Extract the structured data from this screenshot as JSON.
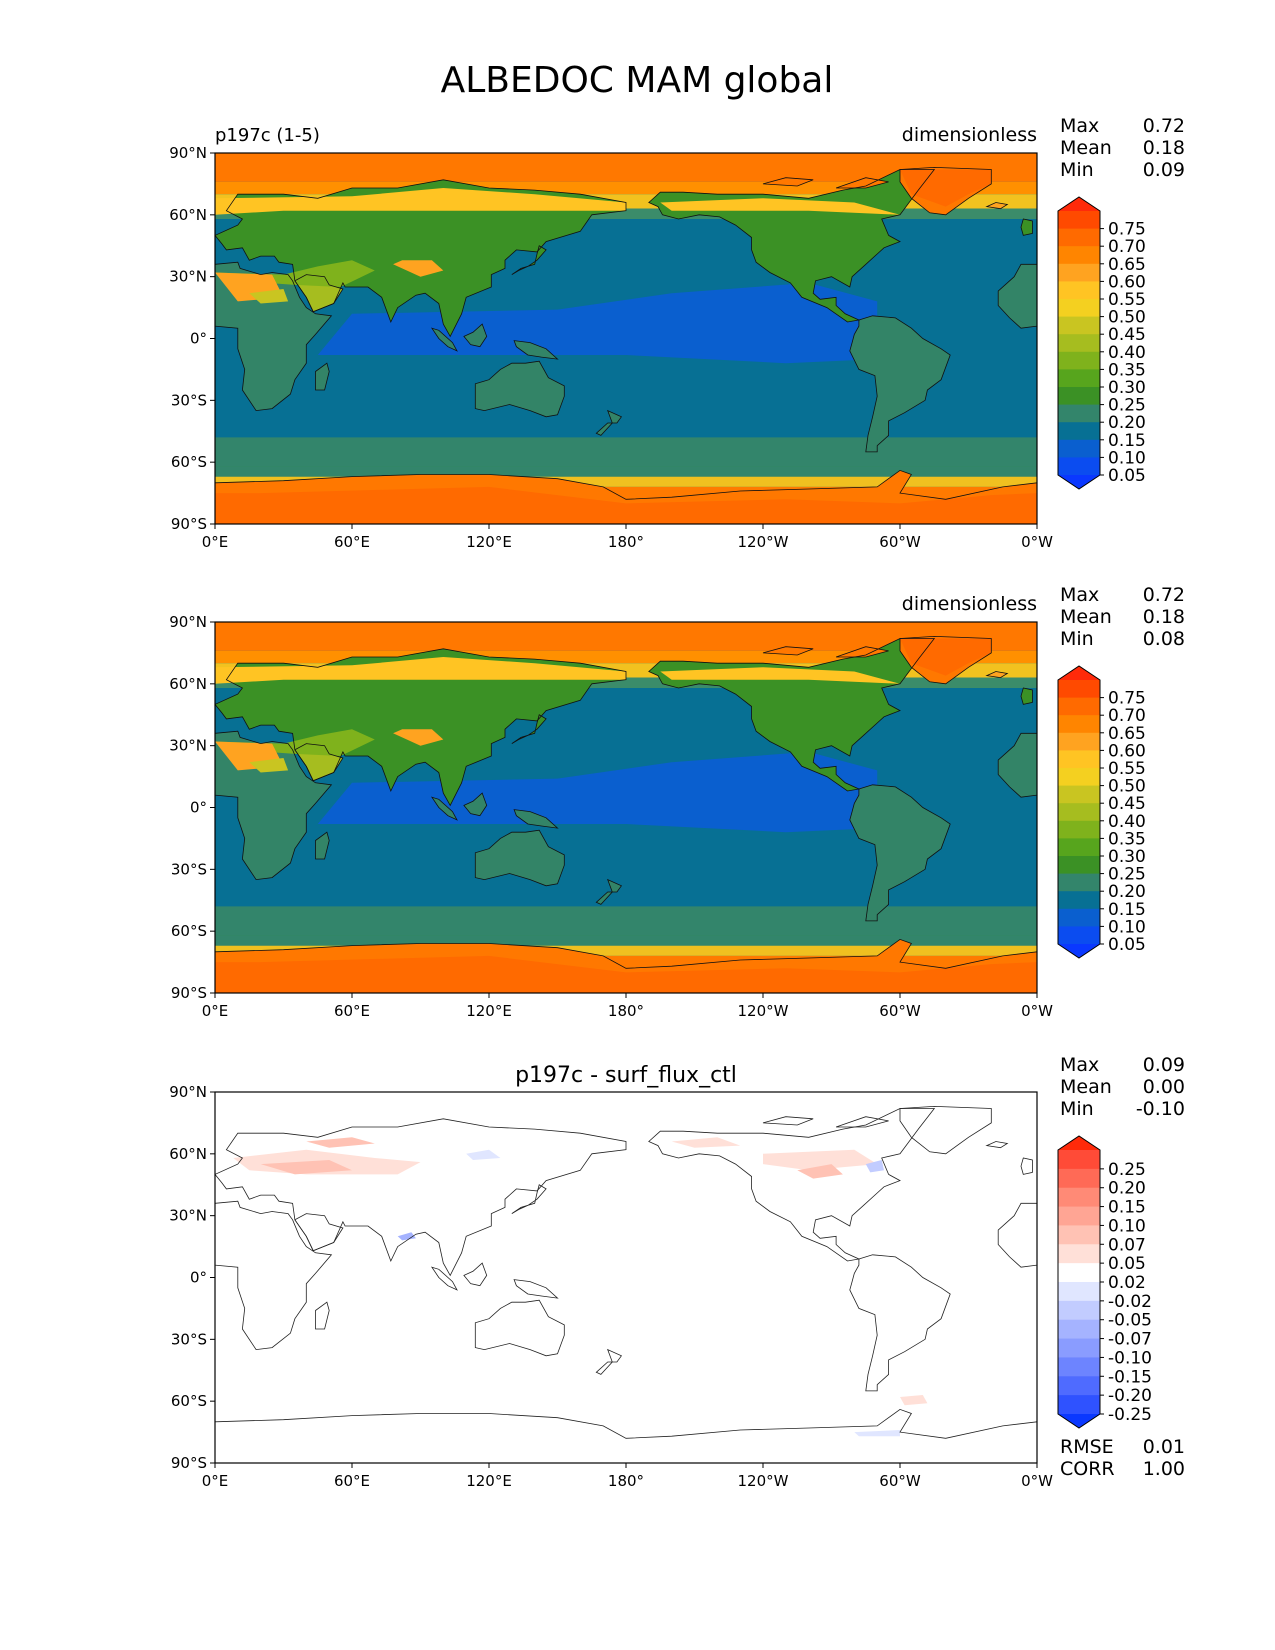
{
  "figure": {
    "title": "ALBEDOC MAM global"
  },
  "axes": {
    "x_ticks": [
      "0°E",
      "60°E",
      "120°E",
      "180°",
      "120°W",
      "60°W",
      "0°W"
    ],
    "y_ticks": [
      "90°N",
      "60°N",
      "30°N",
      "0°",
      "30°S",
      "60°S",
      "90°S"
    ]
  },
  "panels": [
    {
      "id": "panel1",
      "left_title": "p197c (1-5)",
      "center_title": "",
      "units": "dimensionless",
      "stats": [
        {
          "label": "Max",
          "value": "0.72"
        },
        {
          "label": "Mean",
          "value": "0.18"
        },
        {
          "label": "Min",
          "value": "0.09"
        }
      ],
      "extra_stats": []
    },
    {
      "id": "panel2",
      "left_title": "",
      "center_title": "",
      "units": "dimensionless",
      "stats": [
        {
          "label": "Max",
          "value": "0.72"
        },
        {
          "label": "Mean",
          "value": "0.18"
        },
        {
          "label": "Min",
          "value": "0.08"
        }
      ],
      "extra_stats": []
    },
    {
      "id": "panel3",
      "left_title": "",
      "center_title": "p197c - surf_flux_ctl",
      "units": "",
      "stats": [
        {
          "label": "Max",
          "value": "0.09"
        },
        {
          "label": "Mean",
          "value": "0.00"
        },
        {
          "label": "Min",
          "value": "-0.10"
        }
      ],
      "extra_stats": [
        {
          "label": "RMSE",
          "value": "0.01"
        },
        {
          "label": "CORR",
          "value": "1.00"
        }
      ]
    }
  ],
  "colorbars": {
    "albedo": {
      "labels": [
        "0.75",
        "0.70",
        "0.65",
        "0.60",
        "0.55",
        "0.50",
        "0.45",
        "0.40",
        "0.35",
        "0.30",
        "0.25",
        "0.20",
        "0.15",
        "0.10",
        "0.05"
      ],
      "colors": [
        "#ff2a0a",
        "#ff4a00",
        "#ff6a00",
        "#ff8500",
        "#ffa320",
        "#ffc423",
        "#f4d020",
        "#c9c521",
        "#a6bd1f",
        "#7fb21c",
        "#57a51d",
        "#3b9125",
        "#33856b",
        "#077094",
        "#0a5fcf",
        "#0b4cf0",
        "#0a38ff"
      ]
    },
    "difference": {
      "labels": [
        "0.25",
        "0.20",
        "0.15",
        "0.10",
        "0.07",
        "0.05",
        "0.02",
        "-0.02",
        "-0.05",
        "-0.07",
        "-0.10",
        "-0.15",
        "-0.20",
        "-0.25"
      ],
      "colors": [
        "#ff2a0a",
        "#ff4b37",
        "#ff6a56",
        "#ff8a76",
        "#ffa594",
        "#ffc2b4",
        "#ffe0d8",
        "#ffffff",
        "#e0e6ff",
        "#c2ccff",
        "#a5b3ff",
        "#8a9cff",
        "#6d84ff",
        "#4f6bff",
        "#2f52ff",
        "#0a38ff"
      ]
    }
  },
  "chart_data": [
    {
      "type": "heatmap",
      "title": "p197c (1-5)",
      "units": "dimensionless",
      "xlim": [
        0,
        360
      ],
      "ylim": [
        -90,
        90
      ],
      "colorbar_levels": [
        0.05,
        0.1,
        0.15,
        0.2,
        0.25,
        0.3,
        0.35,
        0.4,
        0.45,
        0.5,
        0.55,
        0.6,
        0.65,
        0.7,
        0.75
      ],
      "stats": {
        "max": 0.72,
        "mean": 0.18,
        "min": 0.09
      }
    },
    {
      "type": "heatmap",
      "title": "",
      "units": "dimensionless",
      "xlim": [
        0,
        360
      ],
      "ylim": [
        -90,
        90
      ],
      "colorbar_levels": [
        0.05,
        0.1,
        0.15,
        0.2,
        0.25,
        0.3,
        0.35,
        0.4,
        0.45,
        0.5,
        0.55,
        0.6,
        0.65,
        0.7,
        0.75
      ],
      "stats": {
        "max": 0.72,
        "mean": 0.18,
        "min": 0.08
      }
    },
    {
      "type": "heatmap",
      "title": "p197c - surf_flux_ctl",
      "xlim": [
        0,
        360
      ],
      "ylim": [
        -90,
        90
      ],
      "colorbar_levels": [
        -0.25,
        -0.2,
        -0.15,
        -0.1,
        -0.07,
        -0.05,
        -0.02,
        0.02,
        0.05,
        0.07,
        0.1,
        0.15,
        0.2,
        0.25
      ],
      "stats": {
        "max": 0.09,
        "mean": 0.0,
        "min": -0.1,
        "rmse": 0.01,
        "corr": 1.0
      }
    }
  ]
}
